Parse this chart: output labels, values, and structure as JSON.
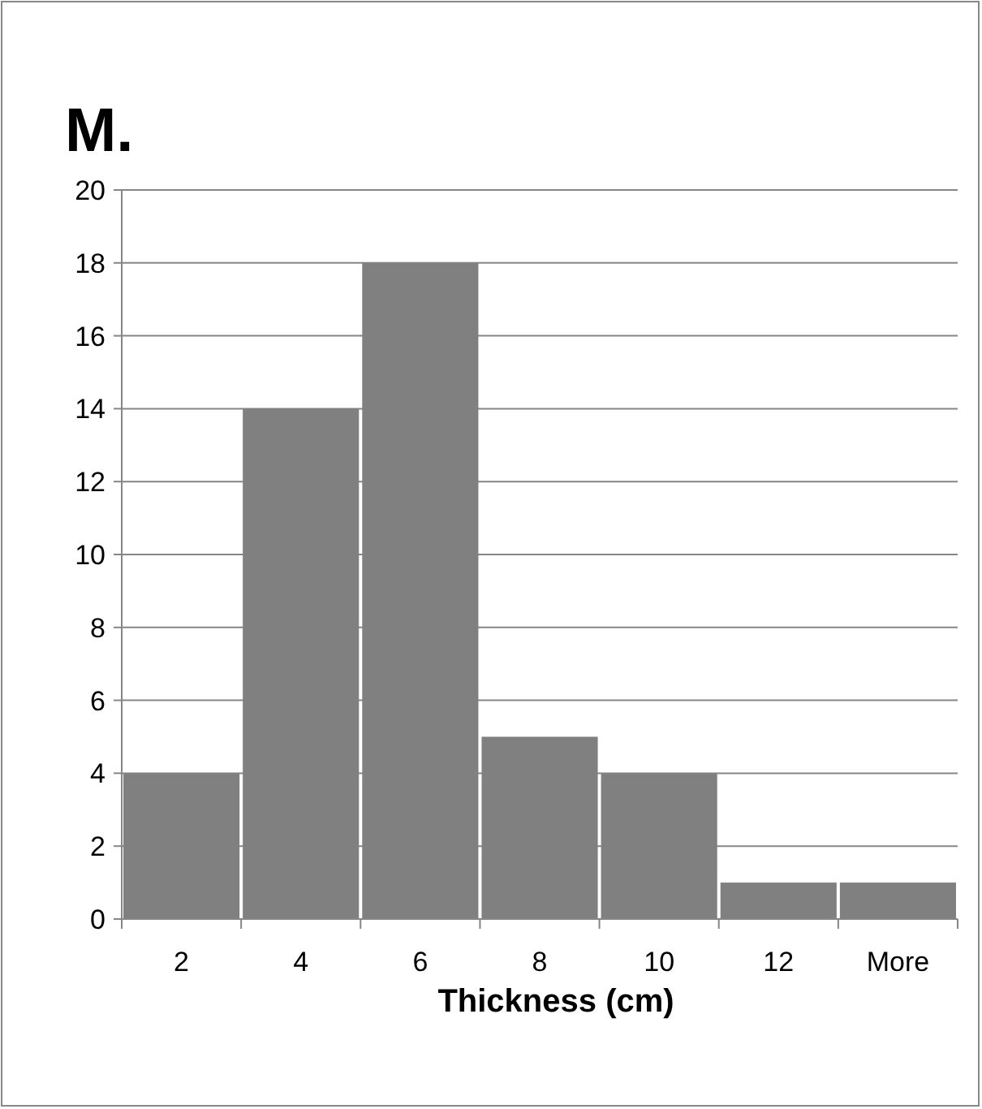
{
  "chart_data": {
    "type": "bar",
    "title": "M.",
    "xlabel": "Thickness (cm)",
    "categories": [
      "2",
      "4",
      "6",
      "8",
      "10",
      "12",
      "More"
    ],
    "values": [
      4,
      14,
      18,
      5,
      4,
      1,
      1
    ],
    "color": "#808080",
    "ylim": [
      0,
      20
    ],
    "yticks": [
      0,
      2,
      4,
      6,
      8,
      10,
      12,
      14,
      16,
      18,
      20
    ],
    "grid": "y"
  }
}
